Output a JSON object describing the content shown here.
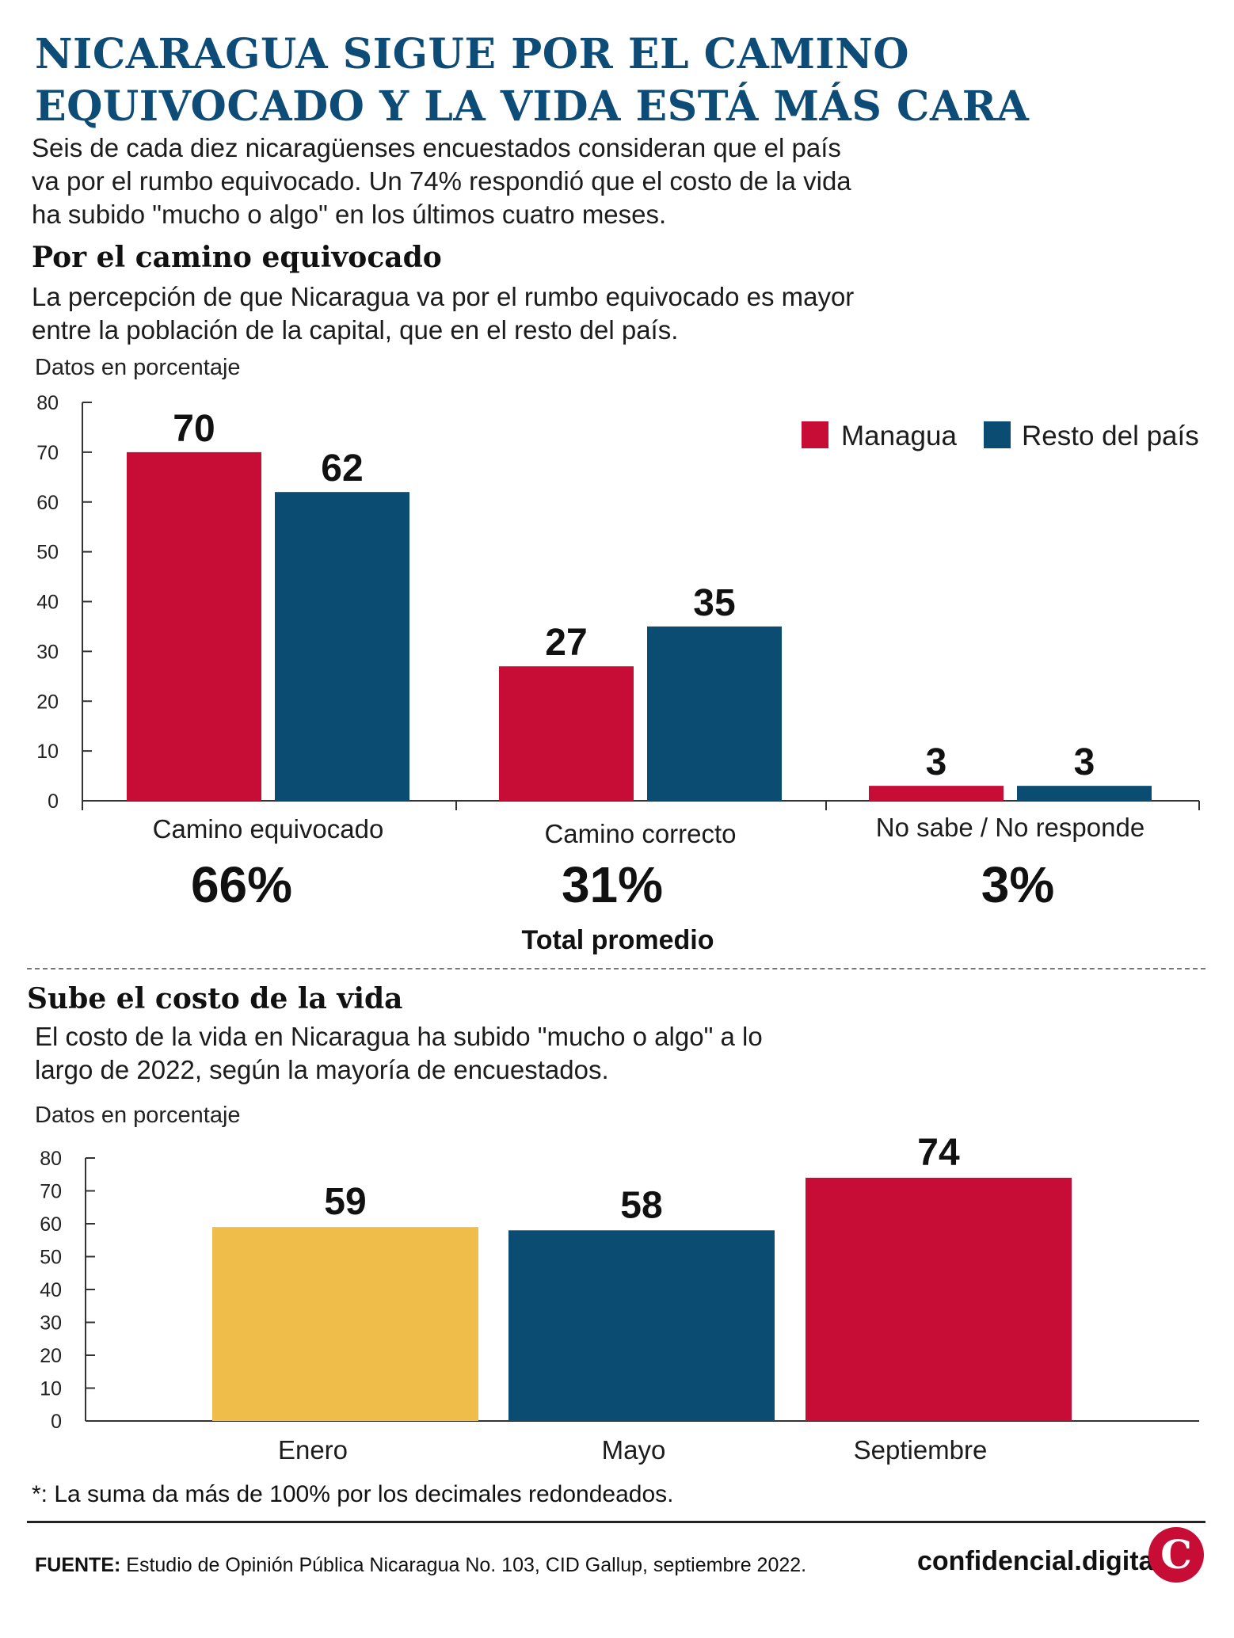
{
  "title": "NICARAGUA SIGUE POR EL CAMINO EQUIVOCADO Y LA VIDA ESTÁ MÁS CARA",
  "intro": "Seis de cada diez nicaragüenses encuestados consideran que el país va por el rumbo equivocado. Un 74% respondió que el costo de la vida ha subido \"mucho o algo\" en los últimos cuatro meses.",
  "section1": {
    "title": "Por el camino equivocado",
    "description": "La percepción de que Nicaragua va por el rumbo equivocado es mayor entre la población de la capital, que en el resto del país.",
    "units": "Datos en porcentaje",
    "totals_label": "Total promedio",
    "totals": [
      "66%",
      "31%",
      "3%"
    ]
  },
  "section2": {
    "title": "Sube el costo de la vida",
    "description": "El costo de la vida en Nicaragua ha subido \"mucho o algo\" a lo largo de 2022, según la mayoría de encuestados.",
    "units": "Datos en porcentaje"
  },
  "chart_data": [
    {
      "type": "bar",
      "categories": [
        "Camino equivocado",
        "Camino correcto",
        "No sabe / No responde"
      ],
      "series": [
        {
          "name": "Managua",
          "values": [
            70,
            27,
            3
          ],
          "color": "#c70c36"
        },
        {
          "name": "Resto del país",
          "values": [
            62,
            35,
            3
          ],
          "color": "#0b4c73"
        }
      ],
      "ylim": [
        0,
        80
      ],
      "yticks": [
        0,
        10,
        20,
        30,
        40,
        50,
        60,
        70,
        80
      ],
      "legend": "top-right",
      "grid": false
    },
    {
      "type": "bar",
      "categories": [
        "Enero",
        "Mayo",
        "Septiembre"
      ],
      "values": [
        59,
        58,
        74
      ],
      "colors": [
        "#efbe4a",
        "#0b4c73",
        "#c70c36"
      ],
      "ylim": [
        0,
        80
      ],
      "yticks": [
        0,
        10,
        20,
        30,
        40,
        50,
        60,
        70,
        80
      ],
      "grid": false
    }
  ],
  "footnote": "*: La suma da más de 100% por los decimales redondeados.",
  "source": {
    "label": "FUENTE:",
    "text": "Estudio de Opinión Pública Nicaragua No. 103, CID Gallup, septiembre 2022."
  },
  "brand": {
    "name": "confidencial.digital",
    "logo_letter": "C"
  }
}
